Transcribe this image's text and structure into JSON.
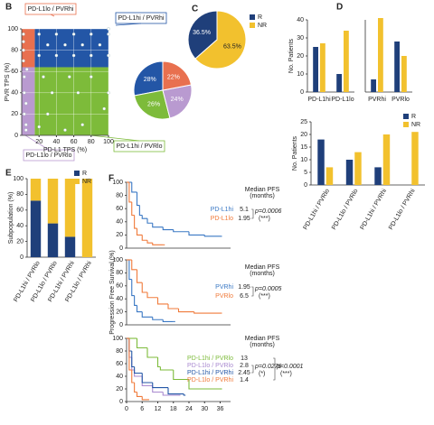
{
  "chart_data": [
    {
      "type": "scatter",
      "panel": "B",
      "xlabel": "PD-L1 TPS (%)",
      "ylabel": "PVR TPS (%)",
      "xlim": [
        0,
        100
      ],
      "ylim": [
        0,
        100
      ],
      "xticks": [
        20,
        40,
        60,
        80,
        100
      ],
      "yticks": [
        0,
        20,
        40,
        60,
        80,
        100
      ],
      "grid": true,
      "x_cutoff": 15,
      "y_cutoff": 64,
      "color": "#ffffff",
      "quadrants": [
        {
          "label": "PD-L1hi / PVRhi",
          "color": "#2356a6"
        },
        {
          "label": "PD-L1lo / PVRhi",
          "color": "#e8704f"
        },
        {
          "label": "PD-L1hi / PVRlo",
          "color": "#7dbb3a"
        },
        {
          "label": "PD-L1lo / PVRlo",
          "color": "#b99ad0"
        }
      ],
      "x": [
        2,
        2,
        2,
        2,
        3,
        3,
        3,
        5,
        5,
        5,
        6,
        20,
        40,
        60,
        80,
        100,
        30,
        50,
        70,
        90,
        20,
        40,
        60,
        80,
        100,
        25,
        55,
        80,
        100,
        35,
        65,
        95,
        30,
        70,
        20,
        50,
        100
      ],
      "y": [
        95,
        88,
        80,
        70,
        55,
        40,
        20,
        10,
        30,
        5,
        62,
        95,
        95,
        95,
        95,
        95,
        85,
        85,
        85,
        85,
        75,
        75,
        75,
        75,
        75,
        55,
        55,
        55,
        40,
        40,
        40,
        25,
        20,
        10,
        8,
        5,
        100
      ]
    },
    {
      "type": "pie",
      "values": [
        28,
        26,
        24,
        22
      ],
      "value_labels": [
        "28%",
        "26%",
        "24%",
        "22%"
      ],
      "colors": [
        "#2356a6",
        "#7dbb3a",
        "#b99ad0",
        "#e8704f"
      ]
    },
    {
      "type": "pie",
      "panel": "C",
      "categories": [
        "R",
        "NR"
      ],
      "values": [
        36.5,
        63.5
      ],
      "value_labels": [
        "36.5%",
        "63.5%"
      ],
      "colors": [
        "#1f3f7a",
        "#f2c12e"
      ]
    },
    {
      "type": "bar",
      "panel": "D",
      "ylabel": "No. Patients",
      "categories": [
        "PD-L1hi",
        "PD-L1lo"
      ],
      "series": [
        {
          "color": "#1f3f7a",
          "values": [
            25,
            10
          ]
        },
        {
          "color": "#f2c12e",
          "values": [
            27,
            34
          ]
        }
      ],
      "ylim": [
        0,
        40
      ],
      "yticks": [
        0,
        10,
        20,
        30,
        40
      ]
    },
    {
      "type": "bar",
      "categories": [
        "PVRhi",
        "PVRlo"
      ],
      "series": [
        {
          "color": "#1f3f7a",
          "values": [
            7,
            28
          ]
        },
        {
          "color": "#f2c12e",
          "values": [
            41,
            20
          ]
        }
      ],
      "ylim": [
        0,
        40
      ]
    },
    {
      "type": "bar",
      "ylabel": "No. Patients",
      "categories": [
        "PD-L1hi / PVRlo",
        "PD-L1lo / PVRlo",
        "PD-L1hi / PVRhi",
        "PD-L1lo / PVRhi"
      ],
      "series": [
        {
          "name": "R",
          "color": "#1f3f7a",
          "values": [
            18,
            10,
            7,
            0
          ]
        },
        {
          "name": "NR",
          "color": "#f2c12e",
          "values": [
            7,
            13,
            20,
            21
          ]
        }
      ],
      "ylim": [
        0,
        25
      ],
      "yticks": [
        0,
        5,
        10,
        15,
        20,
        25
      ]
    },
    {
      "type": "bar",
      "stacked": true,
      "panel": "E",
      "ylabel": "Subpopulation (%)",
      "categories": [
        "PD-L1hi / PVRlo",
        "PD-L1lo / PVRlo",
        "PD-L1hi / PVRhi",
        "PD-L1lo / PVRhi"
      ],
      "series": [
        {
          "name": "R",
          "color": "#1f3f7a",
          "values": [
            72,
            43,
            26,
            0
          ]
        },
        {
          "name": "NR",
          "color": "#f2c12e",
          "values": [
            28,
            57,
            74,
            100
          ]
        }
      ],
      "ylim": [
        0,
        100
      ],
      "yticks": [
        0,
        20,
        40,
        60,
        80,
        100
      ]
    },
    {
      "type": "km",
      "panel": "F",
      "ylabel": "Progression Free Survival (%)",
      "median_header": "Median PFS",
      "median_unit": "(months)",
      "xlim": [
        0,
        40
      ],
      "ylim": [
        0,
        100
      ],
      "yticks": [
        0,
        20,
        40,
        60,
        80,
        100
      ],
      "series": [
        {
          "name": "PD-L1hi",
          "color": "#3a78c4",
          "median": 5.1,
          "x": [
            0,
            2,
            4,
            5,
            6,
            8,
            10,
            14,
            18,
            24,
            30,
            36
          ],
          "values": [
            100,
            85,
            65,
            50,
            45,
            38,
            32,
            28,
            25,
            20,
            18,
            18
          ]
        },
        {
          "name": "PD-L1lo",
          "color": "#f07a3a",
          "median": 1.95,
          "x": [
            0,
            1,
            2,
            3,
            4,
            6,
            8,
            10,
            14
          ],
          "values": [
            100,
            70,
            50,
            30,
            20,
            12,
            8,
            5,
            5
          ]
        }
      ],
      "pvalues": [
        {
          "text": "p=0.0006",
          "sig": "(***)"
        }
      ]
    },
    {
      "type": "km",
      "median_header": "Median PFS",
      "median_unit": "(months)",
      "xlim": [
        0,
        40
      ],
      "ylim": [
        0,
        100
      ],
      "yticks": [
        0,
        20,
        40,
        60,
        80,
        100
      ],
      "series": [
        {
          "name": "PVRhi",
          "color": "#3a78c4",
          "median": 1.95,
          "x": [
            0,
            1,
            2,
            3,
            4,
            6,
            10,
            14,
            18
          ],
          "values": [
            100,
            70,
            45,
            30,
            20,
            12,
            8,
            5,
            5
          ]
        },
        {
          "name": "PVRlo",
          "color": "#f07a3a",
          "median": 6.5,
          "x": [
            0,
            2,
            4,
            6,
            8,
            12,
            16,
            20,
            26,
            36
          ],
          "values": [
            100,
            85,
            65,
            50,
            42,
            32,
            25,
            20,
            18,
            18
          ]
        }
      ],
      "pvalues": [
        {
          "text": "p=0.0005",
          "sig": "(***)"
        }
      ]
    },
    {
      "type": "km",
      "median_header": "Median PFS",
      "median_unit": "(months)",
      "xlim": [
        0,
        40
      ],
      "ylim": [
        0,
        100
      ],
      "xticks": [
        0,
        6,
        12,
        18,
        24,
        30,
        36
      ],
      "yticks": [
        0,
        20,
        40,
        60,
        80,
        100
      ],
      "series": [
        {
          "name": "PD-L1hi / PVRlo",
          "color": "#7dbb3a",
          "median": 13,
          "x": [
            0,
            4,
            8,
            12,
            13,
            18,
            24,
            36
          ],
          "values": [
            100,
            85,
            70,
            55,
            50,
            35,
            20,
            20
          ]
        },
        {
          "name": "PD-L1lo / PVRlo",
          "color": "#a98ad0",
          "median": 2.8,
          "x": [
            0,
            1,
            2,
            3,
            6,
            10,
            14,
            20
          ],
          "values": [
            100,
            70,
            50,
            40,
            25,
            15,
            10,
            10
          ]
        },
        {
          "name": "PD-L1hi / PVRhi",
          "color": "#2356a6",
          "median": 2.45,
          "x": [
            0,
            1,
            2,
            3,
            6,
            10,
            16,
            22
          ],
          "values": [
            100,
            80,
            55,
            45,
            30,
            22,
            12,
            10
          ]
        },
        {
          "name": "PD-L1lo / PVRhi",
          "color": "#f07a3a",
          "median": 1.4,
          "x": [
            0,
            1,
            2,
            3,
            4,
            6,
            8
          ],
          "values": [
            100,
            50,
            30,
            15,
            8,
            3,
            3
          ]
        }
      ],
      "pvalues": [
        {
          "text": "p=0.0276",
          "sig": "(*)"
        },
        {
          "text": "p<0.0001",
          "sig": "(***)"
        }
      ]
    }
  ]
}
